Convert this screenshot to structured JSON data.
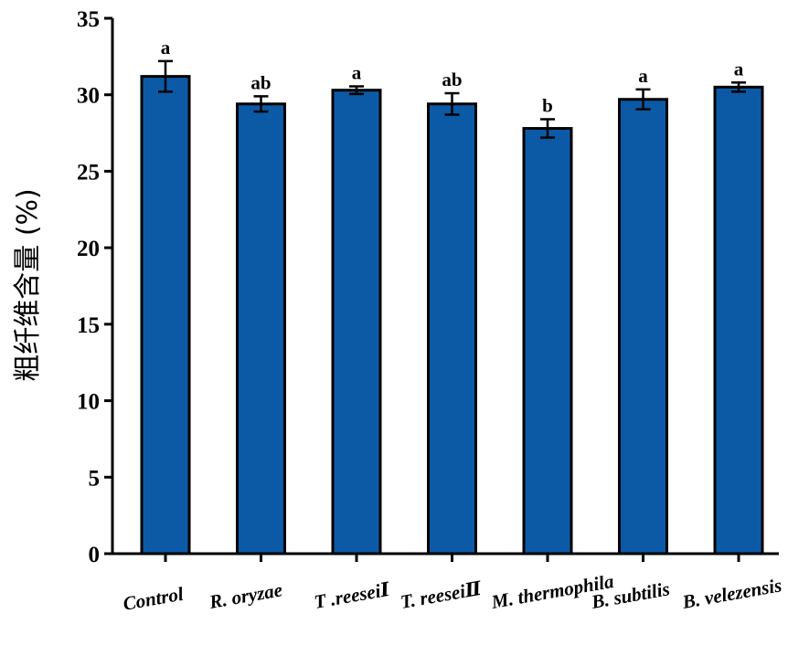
{
  "chart_data": {
    "type": "bar",
    "ylabel": "粗纤维含量 (%)",
    "xlabel": "",
    "ylim": [
      0,
      35
    ],
    "yticks": [
      0,
      5,
      10,
      15,
      20,
      25,
      30,
      35
    ],
    "categories": [
      "Control",
      "R. oryzae",
      "T .reeseiⅠ",
      "T. reeseiⅡ",
      "M. thermophila",
      "B. subtilis",
      "B. velezensis"
    ],
    "values": [
      31.2,
      29.4,
      30.3,
      29.4,
      27.8,
      29.7,
      30.5
    ],
    "errors": [
      1.0,
      0.5,
      0.25,
      0.7,
      0.6,
      0.65,
      0.3
    ],
    "significance": [
      "a",
      "ab",
      "a",
      "ab",
      "b",
      "a",
      "a"
    ],
    "bar_color": "#0c5aa6",
    "bar_edge_color": "#000000"
  }
}
